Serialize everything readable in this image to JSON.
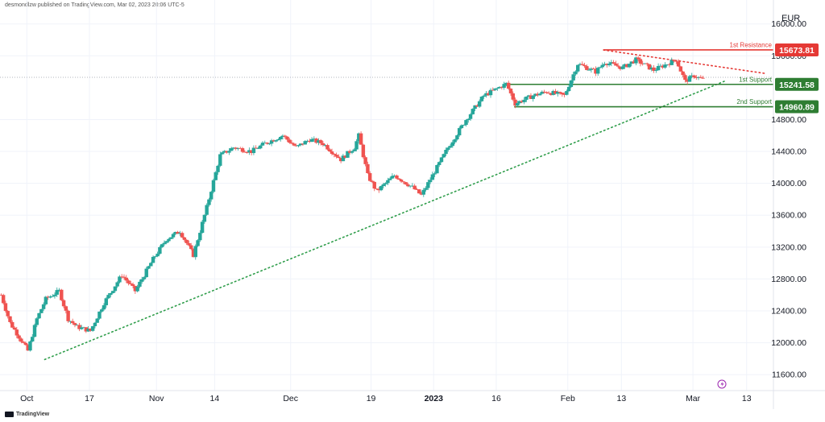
{
  "header": {
    "publisher_text": "desmondlzw published on TradingView.com, Mar 02, 2023 20:06 UTC-5"
  },
  "footer": {
    "brand": "TradingView",
    "logo_icon": "tradingview-logo-icon"
  },
  "colors": {
    "up": "#26a69a",
    "down": "#ef5350",
    "support": "#2e7d32",
    "resistance": "#e53935",
    "trendline": "#2e9d4a",
    "grid": "#f0f3fa",
    "axis_text": "#131722"
  },
  "chart_data": {
    "type": "candlestick",
    "currency": "EUR",
    "y_ticks": [
      "16000.00",
      "15600.00",
      "14800.00",
      "14400.00",
      "14000.00",
      "13600.00",
      "13200.00",
      "12800.00",
      "12400.00",
      "12000.00",
      "11600.00"
    ],
    "y_tick_values": [
      16000,
      15600,
      14800,
      14400,
      14000,
      13600,
      13200,
      12800,
      12400,
      12000,
      11600
    ],
    "ylim": [
      11400,
      16300
    ],
    "x_ticks": [
      "Oct",
      "17",
      "Nov",
      "14",
      "Dec",
      "19",
      "2023",
      "16",
      "Feb",
      "13",
      "Mar",
      "13"
    ],
    "x_tick_dates": [
      "2022-10-03",
      "2022-10-17",
      "2022-11-01",
      "2022-11-14",
      "2022-12-01",
      "2022-12-19",
      "2023-01-02",
      "2023-01-16",
      "2023-02-01",
      "2023-02-13",
      "2023-03-01",
      "2023-03-13"
    ],
    "x_range": [
      "2022-09-27",
      "2023-03-19"
    ],
    "grid": true,
    "levels": [
      {
        "label": "1st Resistance",
        "value": 15673.81,
        "value_text": "15673.81",
        "kind": "resistance",
        "from": "2023-02-09",
        "to": "2023-03-19"
      },
      {
        "label": "1st Support",
        "value": 15241.58,
        "value_text": "15241.58",
        "kind": "support",
        "from": "2023-01-18",
        "to": "2023-03-19"
      },
      {
        "label": "2nd Support",
        "value": 14960.89,
        "value_text": "14960.89",
        "kind": "support",
        "from": "2023-01-20",
        "to": "2023-03-19"
      }
    ],
    "trendlines": [
      {
        "kind": "support-trend",
        "style": "dotted",
        "points": [
          [
            "2022-10-07",
            11790
          ],
          [
            "2023-03-08",
            15280
          ]
        ]
      },
      {
        "kind": "resistance-trend",
        "style": "dotted",
        "points": [
          [
            "2023-02-09",
            15673
          ],
          [
            "2023-03-17",
            15380
          ]
        ]
      }
    ],
    "current_price": 15330,
    "close_path": [
      [
        "2022-09-27",
        12600
      ],
      [
        "2022-09-29",
        12250
      ],
      [
        "2022-10-03",
        11900
      ],
      [
        "2022-10-05",
        12300
      ],
      [
        "2022-10-07",
        12550
      ],
      [
        "2022-10-10",
        12650
      ],
      [
        "2022-10-12",
        12300
      ],
      [
        "2022-10-14",
        12200
      ],
      [
        "2022-10-17",
        12150
      ],
      [
        "2022-10-20",
        12500
      ],
      [
        "2022-10-24",
        12850
      ],
      [
        "2022-10-27",
        12650
      ],
      [
        "2022-10-31",
        13050
      ],
      [
        "2022-11-03",
        13300
      ],
      [
        "2022-11-06",
        13400
      ],
      [
        "2022-11-09",
        13100
      ],
      [
        "2022-11-12",
        13700
      ],
      [
        "2022-11-15",
        14350
      ],
      [
        "2022-11-18",
        14450
      ],
      [
        "2022-11-22",
        14400
      ],
      [
        "2022-11-25",
        14500
      ],
      [
        "2022-11-29",
        14600
      ],
      [
        "2022-12-02",
        14450
      ],
      [
        "2022-12-05",
        14550
      ],
      [
        "2022-12-08",
        14500
      ],
      [
        "2022-12-12",
        14300
      ],
      [
        "2022-12-15",
        14450
      ],
      [
        "2022-12-16",
        14600
      ],
      [
        "2022-12-18",
        14100
      ],
      [
        "2022-12-20",
        13900
      ],
      [
        "2022-12-24",
        14100
      ],
      [
        "2022-12-28",
        13950
      ],
      [
        "2022-12-30",
        13850
      ],
      [
        "2023-01-02",
        14150
      ],
      [
        "2023-01-05",
        14450
      ],
      [
        "2023-01-09",
        14800
      ],
      [
        "2023-01-13",
        15100
      ],
      [
        "2023-01-18",
        15250
      ],
      [
        "2023-01-20",
        15000
      ],
      [
        "2023-01-24",
        15100
      ],
      [
        "2023-01-27",
        15150
      ],
      [
        "2023-01-31",
        15100
      ],
      [
        "2023-02-03",
        15500
      ],
      [
        "2023-02-07",
        15400
      ],
      [
        "2023-02-09",
        15520
      ],
      [
        "2023-02-13",
        15450
      ],
      [
        "2023-02-16",
        15550
      ],
      [
        "2023-02-20",
        15420
      ],
      [
        "2023-02-23",
        15500
      ],
      [
        "2023-02-25",
        15550
      ],
      [
        "2023-02-27",
        15280
      ],
      [
        "2023-03-01",
        15350
      ],
      [
        "2023-03-03",
        15300
      ]
    ]
  }
}
